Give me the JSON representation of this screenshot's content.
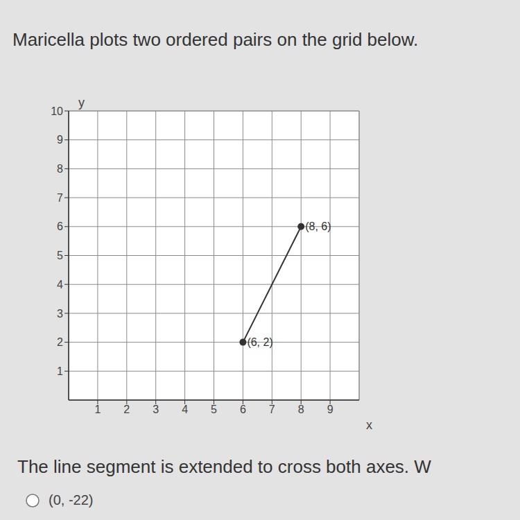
{
  "chart_data": {
    "type": "line",
    "title": "Maricella plots two ordered pairs on the grid below.",
    "caption": "The line segment is extended to cross both axes. W",
    "options": [
      "(0, -22)"
    ],
    "x_label": "x",
    "y_label": "y",
    "x": [
      6,
      8
    ],
    "values": [
      2,
      6
    ],
    "value_labels": [
      "(6, 2)",
      "(8, 6)"
    ],
    "data_labels": true,
    "color": "#333333",
    "marker": "circle",
    "xlim": [
      0,
      10
    ],
    "xticks": [
      1,
      2,
      3,
      4,
      5,
      6,
      7,
      8,
      9
    ],
    "ylim": [
      0,
      10
    ],
    "yticks": [
      1,
      2,
      3,
      4,
      5,
      6,
      7,
      8,
      9,
      10
    ],
    "grid": true
  }
}
